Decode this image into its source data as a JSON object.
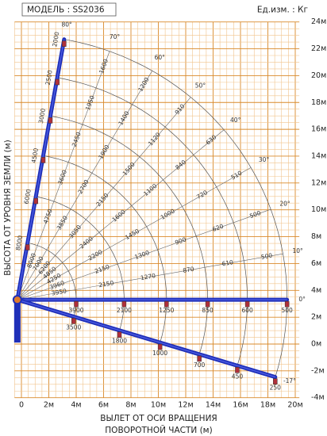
{
  "header": {
    "model": "МОДЕЛЬ : SS2036",
    "units": "Ед.изм. : Кг"
  },
  "y_axis": {
    "title": "ВЫСОТА ОТ УРОВНЯ ЗЕМЛИ (м)",
    "ticks": [
      "-4м",
      "-2м",
      "0м",
      "2м",
      "4м",
      "6м",
      "8м",
      "10м",
      "12м",
      "14м",
      "16м",
      "18м",
      "20м",
      "22м",
      "24м"
    ]
  },
  "x_axis": {
    "title_lines": [
      "ВЫЛЕТ ОТ ОСИ ВРАЩЕНИЯ",
      "ПОВОРОТНОЙ ЧАСТИ (м)"
    ],
    "ticks": [
      "0",
      "2м",
      "4м",
      "6м",
      "8м",
      "10м",
      "12м",
      "14м",
      "16м",
      "18м",
      "20м"
    ]
  },
  "rays": [
    {
      "angle_label": "80°",
      "loads": [
        "8000",
        "6000",
        "4500",
        "3000",
        "2500",
        "2000"
      ]
    },
    {
      "angle_label": "70°",
      "loads": [
        "8000",
        "4750",
        "3600",
        "2450",
        "1950",
        "1600"
      ]
    },
    {
      "angle_label": "60°",
      "loads": [
        "7000",
        "3850",
        "2700",
        "1900",
        "1400",
        "1200"
      ]
    },
    {
      "angle_label": "50°",
      "loads": [
        "6200",
        "3050",
        "2150",
        "1500",
        "1120",
        "910"
      ]
    },
    {
      "angle_label": "40°",
      "loads": [
        "4850",
        "2400",
        "1600",
        "1100",
        "840",
        "630"
      ]
    },
    {
      "angle_label": "30°",
      "loads": [
        "4250",
        "2200",
        "1450",
        "1000",
        "720",
        "510"
      ]
    },
    {
      "angle_label": "20°",
      "loads": [
        "3960",
        "2150",
        "1300",
        "900",
        "620",
        "500"
      ]
    },
    {
      "angle_label": "10°",
      "loads": [
        "3950",
        "2150",
        "1270",
        "870",
        "610",
        "500"
      ]
    },
    {
      "angle_label": "0°",
      "loads": [
        "3900",
        "2100",
        "1250",
        "850",
        "600",
        "500"
      ]
    },
    {
      "angle_label": "-17°",
      "loads": [
        "3500",
        "1800",
        "1000",
        "700",
        "450",
        "250"
      ]
    }
  ]
}
